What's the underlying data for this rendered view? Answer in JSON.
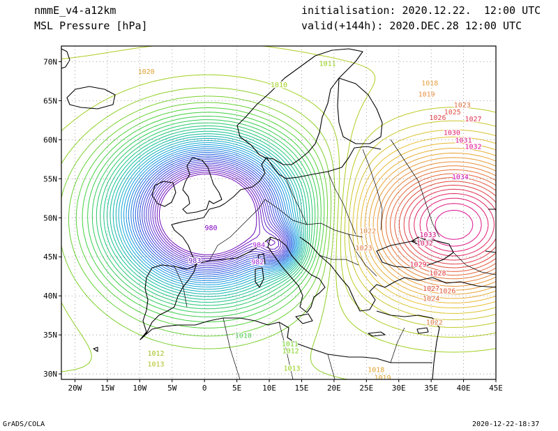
{
  "header": {
    "model": "nmmE_v4-a12km",
    "field": "MSL Pressure [hPa]",
    "init": "initialisation: 2020.12.22.  12:00 UTC",
    "valid": "valid(+144h): 2020.DEC.28 12:00 UTC"
  },
  "footer": {
    "credit": "GrADS/COLA",
    "timestamp": "2020-12-22-18:37"
  },
  "axes": {
    "lon_labels": [
      "20W",
      "15W",
      "10W",
      "5W",
      "0",
      "5E",
      "10E",
      "15E",
      "20E",
      "25E",
      "30E",
      "35E",
      "40E",
      "45E"
    ],
    "lat_labels": [
      "70N",
      "65N",
      "60N",
      "55N",
      "50N",
      "45N",
      "40N",
      "35N",
      "30N"
    ]
  },
  "pressure_systems": [
    {
      "name": "low-north-sea",
      "lon": 0.5,
      "lat": 50.5,
      "value": 979
    },
    {
      "name": "low-alps",
      "lon": 11.5,
      "lat": 46.2,
      "value": 983
    },
    {
      "name": "high-russia",
      "lon": 38.5,
      "lat": 49.0,
      "value": 1035
    }
  ],
  "contour_labels": [
    {
      "text": "1011",
      "lon": 19.0,
      "lat": 69.7,
      "color": "#90d010"
    },
    {
      "text": "1020",
      "lon": -9.0,
      "lat": 68.7,
      "color": "#e0a030"
    },
    {
      "text": "1010",
      "lon": 11.5,
      "lat": 67.0,
      "color": "#a0d020"
    },
    {
      "text": "1018",
      "lon": 34.8,
      "lat": 67.2,
      "color": "#e8a040"
    },
    {
      "text": "1019",
      "lon": 34.3,
      "lat": 65.8,
      "color": "#e89040"
    },
    {
      "text": "1023",
      "lon": 39.8,
      "lat": 64.4,
      "color": "#e07040"
    },
    {
      "text": "1025",
      "lon": 38.3,
      "lat": 63.5,
      "color": "#e05040"
    },
    {
      "text": "1027",
      "lon": 41.5,
      "lat": 62.6,
      "color": "#e03050"
    },
    {
      "text": "1026",
      "lon": 36.0,
      "lat": 62.8,
      "color": "#e04048"
    },
    {
      "text": "1030",
      "lon": 38.2,
      "lat": 60.9,
      "color": "#e02070"
    },
    {
      "text": "1031",
      "lon": 40.0,
      "lat": 59.9,
      "color": "#e01080"
    },
    {
      "text": "1032",
      "lon": 41.5,
      "lat": 59.1,
      "color": "#e00890"
    },
    {
      "text": "1034",
      "lon": 39.5,
      "lat": 55.2,
      "color": "#d000b0"
    },
    {
      "text": "980",
      "lon": 1.0,
      "lat": 48.7,
      "color": "#8000c0"
    },
    {
      "text": "984",
      "lon": 8.4,
      "lat": 46.5,
      "color": "#a020d0"
    },
    {
      "text": "983",
      "lon": -1.5,
      "lat": 44.5,
      "color": "#7020c0"
    },
    {
      "text": "982",
      "lon": 8.2,
      "lat": 44.3,
      "color": "#a020d0"
    },
    {
      "text": "1033",
      "lon": 34.5,
      "lat": 47.8,
      "color": "#d00080"
    },
    {
      "text": "1032",
      "lon": 34.0,
      "lat": 46.7,
      "color": "#d01060"
    },
    {
      "text": "1029",
      "lon": 33.0,
      "lat": 44.0,
      "color": "#e02040"
    },
    {
      "text": "1028",
      "lon": 36.0,
      "lat": 42.9,
      "color": "#e03838"
    },
    {
      "text": "1027",
      "lon": 35.0,
      "lat": 40.9,
      "color": "#e04838"
    },
    {
      "text": "1026",
      "lon": 37.5,
      "lat": 40.6,
      "color": "#e05838"
    },
    {
      "text": "1024",
      "lon": 35.0,
      "lat": 39.6,
      "color": "#e06838"
    },
    {
      "text": "1022",
      "lon": 35.5,
      "lat": 36.6,
      "color": "#e07838"
    },
    {
      "text": "1022",
      "lon": 25.2,
      "lat": 48.3,
      "color": "#e08838"
    },
    {
      "text": "1023",
      "lon": 24.6,
      "lat": 46.1,
      "color": "#e07838"
    },
    {
      "text": "1010",
      "lon": 6.0,
      "lat": 34.9,
      "color": "#50d050"
    },
    {
      "text": "1011",
      "lon": 13.2,
      "lat": 33.8,
      "color": "#70d020"
    },
    {
      "text": "1012",
      "lon": 13.3,
      "lat": 32.9,
      "color": "#80d020"
    },
    {
      "text": "1013",
      "lon": 13.5,
      "lat": 30.7,
      "color": "#90d010"
    },
    {
      "text": "1012",
      "lon": -7.5,
      "lat": 32.6,
      "color": "#a0c020"
    },
    {
      "text": "1013",
      "lon": -7.5,
      "lat": 31.2,
      "color": "#b0c020"
    },
    {
      "text": "1018",
      "lon": 26.5,
      "lat": 30.5,
      "color": "#e0a030"
    },
    {
      "text": "1019",
      "lon": 27.5,
      "lat": 29.5,
      "color": "#e0a030"
    }
  ]
}
